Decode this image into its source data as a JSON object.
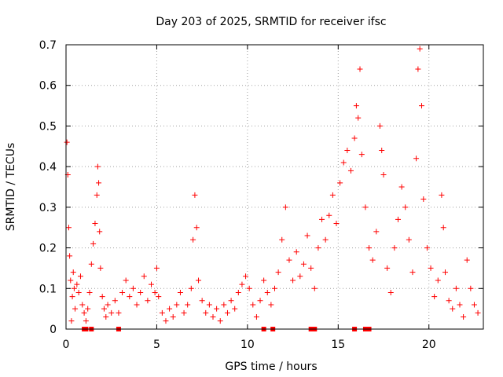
{
  "chart_data": {
    "type": "scatter",
    "title": "Day 203 of 2025, SRMTID for receiver ifsc",
    "xlabel": "GPS time / hours",
    "ylabel": "SRMTID / TECUs",
    "xlim": [
      0,
      23
    ],
    "ylim": [
      0,
      0.7
    ],
    "xticks": [
      0,
      5,
      10,
      15,
      20
    ],
    "yticks": [
      0,
      0.1,
      0.2,
      0.3,
      0.4,
      0.5,
      0.6,
      0.7
    ],
    "grid": true,
    "marker": "+",
    "color": "#ff0000",
    "series": [
      {
        "name": "SRMTID",
        "points": [
          [
            0.05,
            0.46
          ],
          [
            0.1,
            0.38
          ],
          [
            0.15,
            0.25
          ],
          [
            0.2,
            0.18
          ],
          [
            0.25,
            0.12
          ],
          [
            0.3,
            0.02
          ],
          [
            0.35,
            0.08
          ],
          [
            0.4,
            0.14
          ],
          [
            0.45,
            0.1
          ],
          [
            0.5,
            0.05
          ],
          [
            0.6,
            0.11
          ],
          [
            0.7,
            0.09
          ],
          [
            0.8,
            0.13
          ],
          [
            0.9,
            0.06
          ],
          [
            1.0,
            0.04
          ],
          [
            1.1,
            0.02
          ],
          [
            1.2,
            0.05
          ],
          [
            1.3,
            0.09
          ],
          [
            1.4,
            0.16
          ],
          [
            1.5,
            0.21
          ],
          [
            1.6,
            0.26
          ],
          [
            1.7,
            0.33
          ],
          [
            1.75,
            0.4
          ],
          [
            1.8,
            0.36
          ],
          [
            1.85,
            0.24
          ],
          [
            1.9,
            0.15
          ],
          [
            2.0,
            0.08
          ],
          [
            2.1,
            0.05
          ],
          [
            2.2,
            0.03
          ],
          [
            2.3,
            0.06
          ],
          [
            2.5,
            0.04
          ],
          [
            2.7,
            0.07
          ],
          [
            2.9,
            0.04
          ],
          [
            3.1,
            0.09
          ],
          [
            3.3,
            0.12
          ],
          [
            3.5,
            0.08
          ],
          [
            3.7,
            0.1
          ],
          [
            3.9,
            0.06
          ],
          [
            4.1,
            0.09
          ],
          [
            4.3,
            0.13
          ],
          [
            4.5,
            0.07
          ],
          [
            4.7,
            0.11
          ],
          [
            4.9,
            0.09
          ],
          [
            5.0,
            0.15
          ],
          [
            5.1,
            0.08
          ],
          [
            5.3,
            0.04
          ],
          [
            5.5,
            0.02
          ],
          [
            5.7,
            0.05
          ],
          [
            5.9,
            0.03
          ],
          [
            6.1,
            0.06
          ],
          [
            6.3,
            0.09
          ],
          [
            6.5,
            0.04
          ],
          [
            6.7,
            0.06
          ],
          [
            6.9,
            0.1
          ],
          [
            7.0,
            0.22
          ],
          [
            7.1,
            0.33
          ],
          [
            7.2,
            0.25
          ],
          [
            7.3,
            0.12
          ],
          [
            7.5,
            0.07
          ],
          [
            7.7,
            0.04
          ],
          [
            7.9,
            0.06
          ],
          [
            8.1,
            0.03
          ],
          [
            8.3,
            0.05
          ],
          [
            8.5,
            0.02
          ],
          [
            8.7,
            0.06
          ],
          [
            8.9,
            0.04
          ],
          [
            9.1,
            0.07
          ],
          [
            9.3,
            0.05
          ],
          [
            9.5,
            0.09
          ],
          [
            9.7,
            0.11
          ],
          [
            9.9,
            0.13
          ],
          [
            10.1,
            0.1
          ],
          [
            10.3,
            0.06
          ],
          [
            10.5,
            0.03
          ],
          [
            10.7,
            0.07
          ],
          [
            10.9,
            0.12
          ],
          [
            11.1,
            0.09
          ],
          [
            11.3,
            0.06
          ],
          [
            11.5,
            0.1
          ],
          [
            11.7,
            0.14
          ],
          [
            11.9,
            0.22
          ],
          [
            12.1,
            0.3
          ],
          [
            12.3,
            0.17
          ],
          [
            12.5,
            0.12
          ],
          [
            12.7,
            0.19
          ],
          [
            12.9,
            0.13
          ],
          [
            13.1,
            0.16
          ],
          [
            13.3,
            0.23
          ],
          [
            13.5,
            0.15
          ],
          [
            13.7,
            0.1
          ],
          [
            13.9,
            0.2
          ],
          [
            14.1,
            0.27
          ],
          [
            14.3,
            0.22
          ],
          [
            14.5,
            0.28
          ],
          [
            14.7,
            0.33
          ],
          [
            14.9,
            0.26
          ],
          [
            15.1,
            0.36
          ],
          [
            15.3,
            0.41
          ],
          [
            15.5,
            0.44
          ],
          [
            15.7,
            0.39
          ],
          [
            15.9,
            0.47
          ],
          [
            16.0,
            0.55
          ],
          [
            16.1,
            0.52
          ],
          [
            16.2,
            0.64
          ],
          [
            16.3,
            0.43
          ],
          [
            16.5,
            0.3
          ],
          [
            16.7,
            0.2
          ],
          [
            16.9,
            0.17
          ],
          [
            17.1,
            0.24
          ],
          [
            17.3,
            0.5
          ],
          [
            17.4,
            0.44
          ],
          [
            17.5,
            0.38
          ],
          [
            17.7,
            0.15
          ],
          [
            17.9,
            0.09
          ],
          [
            18.1,
            0.2
          ],
          [
            18.3,
            0.27
          ],
          [
            18.5,
            0.35
          ],
          [
            18.7,
            0.3
          ],
          [
            18.9,
            0.22
          ],
          [
            19.1,
            0.14
          ],
          [
            19.3,
            0.42
          ],
          [
            19.4,
            0.64
          ],
          [
            19.5,
            0.69
          ],
          [
            19.6,
            0.55
          ],
          [
            19.7,
            0.32
          ],
          [
            19.9,
            0.2
          ],
          [
            20.1,
            0.15
          ],
          [
            20.3,
            0.08
          ],
          [
            20.5,
            0.12
          ],
          [
            20.7,
            0.33
          ],
          [
            20.8,
            0.25
          ],
          [
            20.9,
            0.14
          ],
          [
            21.1,
            0.07
          ],
          [
            21.3,
            0.05
          ],
          [
            21.5,
            0.1
          ],
          [
            21.7,
            0.06
          ],
          [
            21.9,
            0.03
          ],
          [
            22.1,
            0.17
          ],
          [
            22.3,
            0.1
          ],
          [
            22.5,
            0.06
          ],
          [
            22.7,
            0.04
          ]
        ]
      }
    ],
    "missing_markers_x": [
      1.0,
      1.1,
      1.4,
      2.9,
      10.9,
      11.4,
      13.5,
      13.7,
      15.9,
      16.5,
      16.7
    ]
  }
}
